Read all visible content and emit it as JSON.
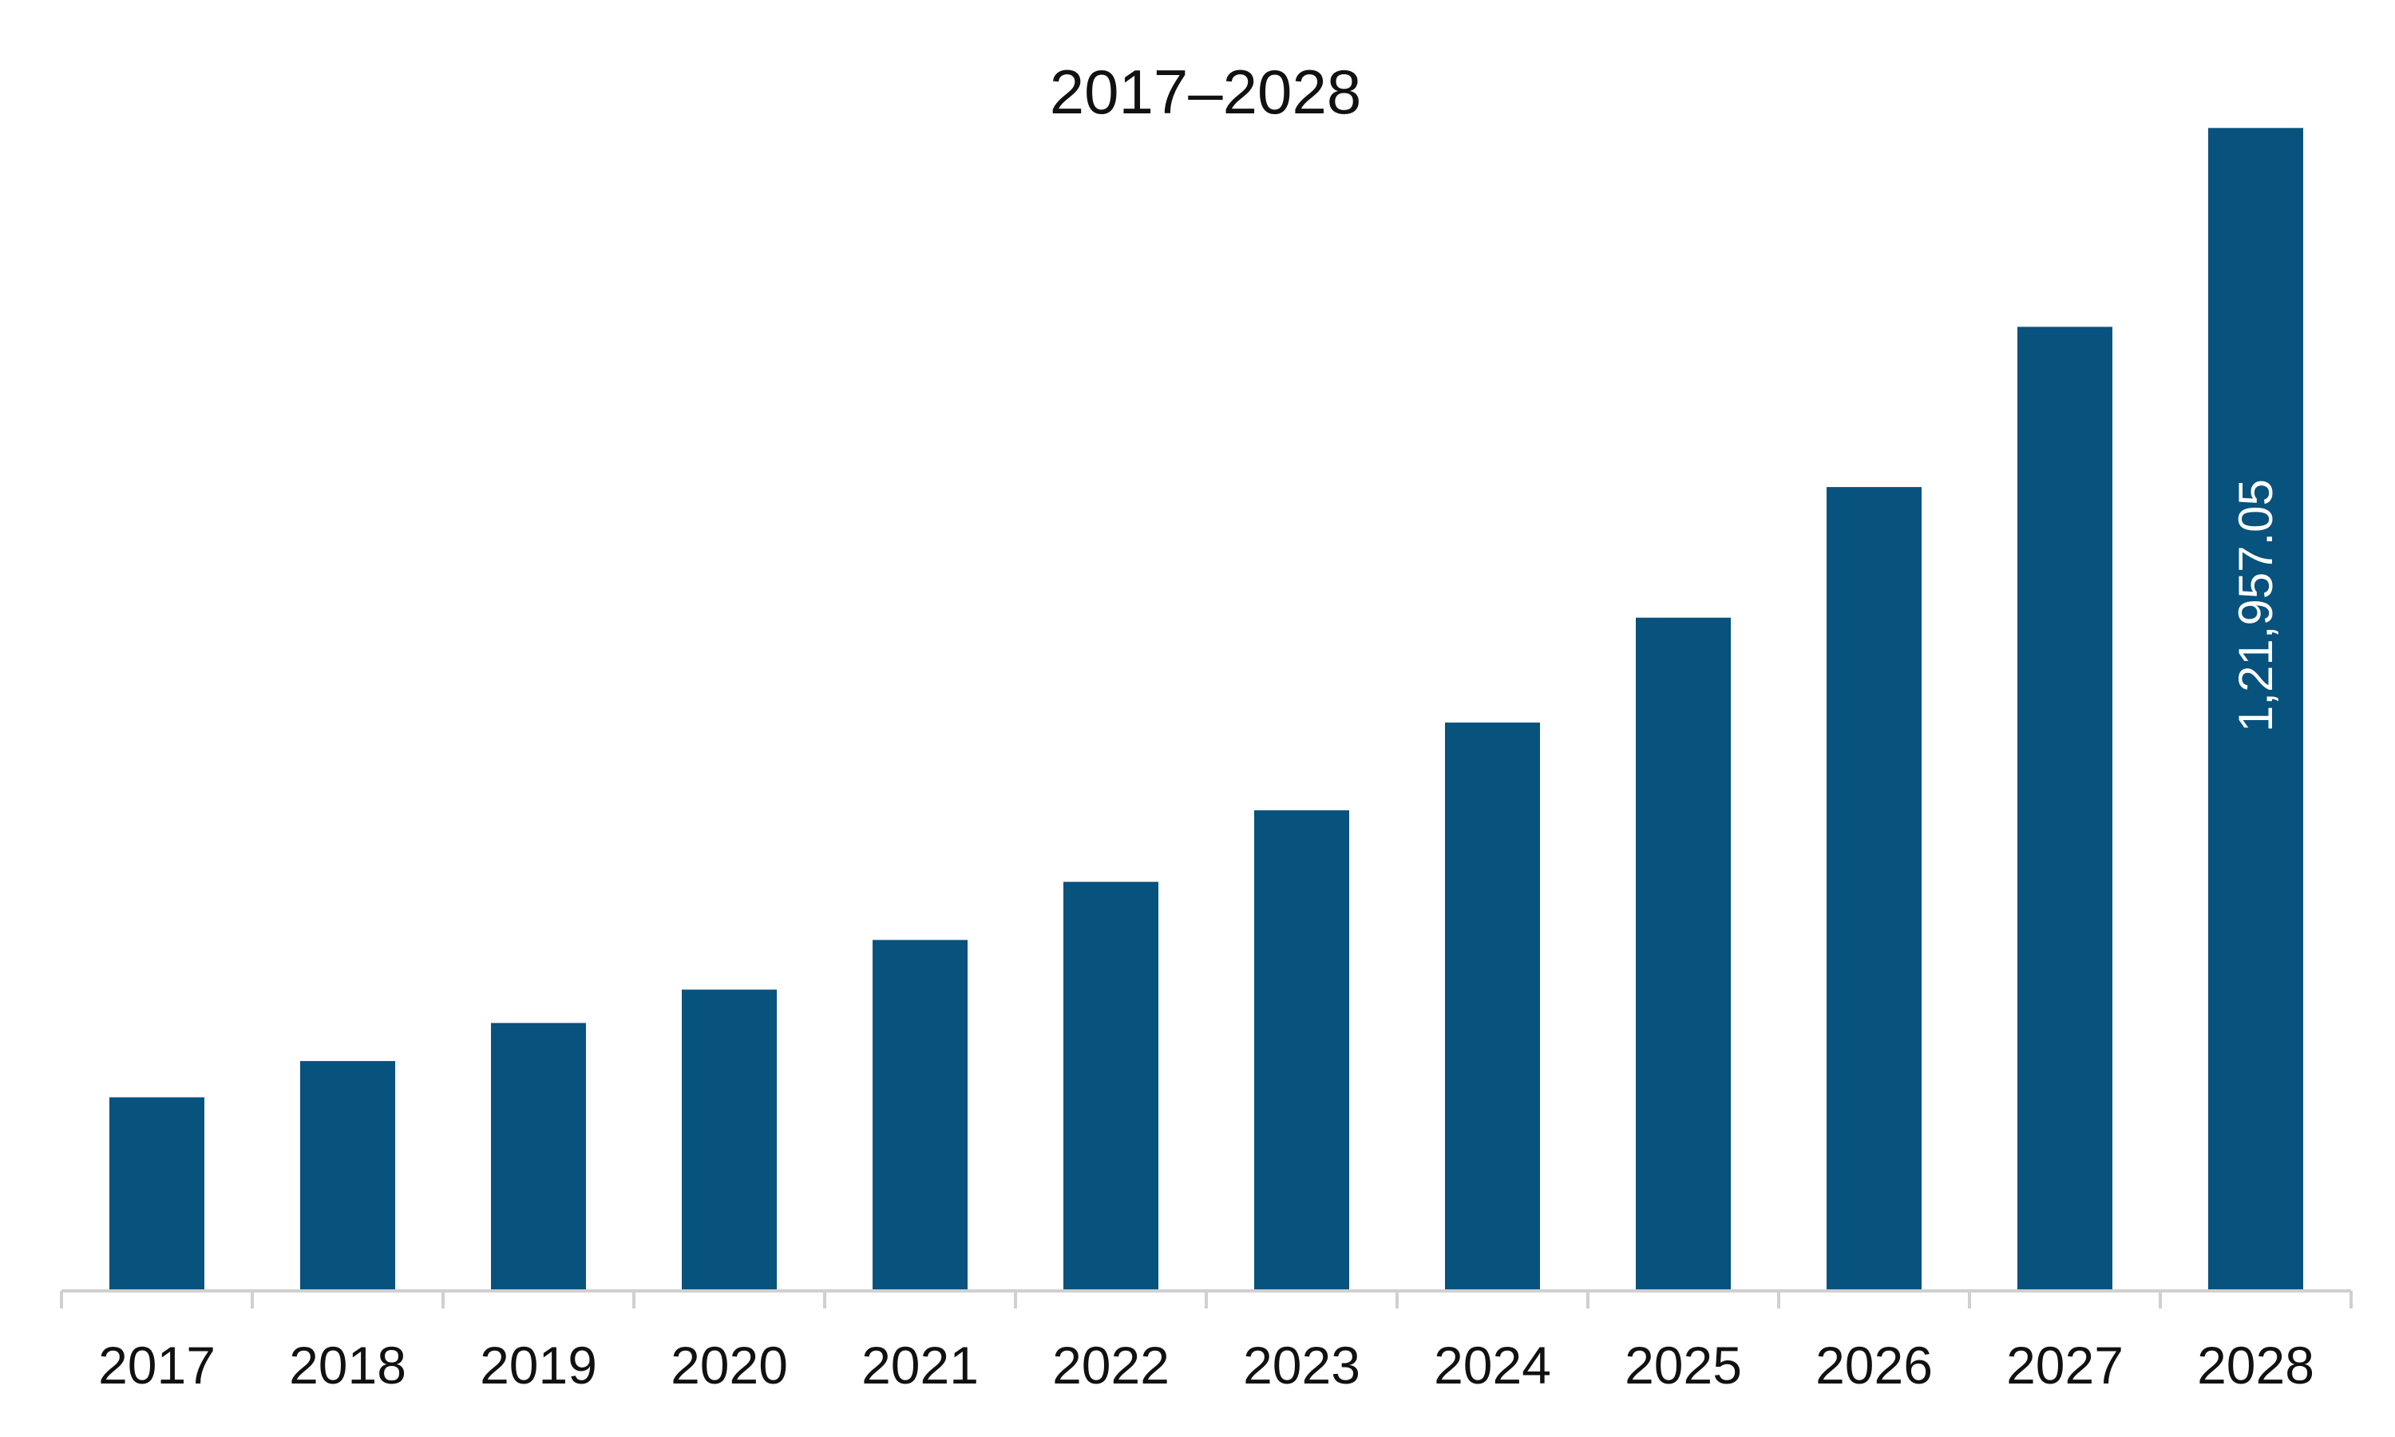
{
  "chart_data": {
    "type": "bar",
    "title": "2017–2028",
    "xlabel": "",
    "ylabel": "",
    "categories": [
      "2017",
      "2018",
      "2019",
      "2020",
      "2021",
      "2022",
      "2023",
      "2024",
      "2025",
      "2026",
      "2027",
      "2028"
    ],
    "series": [
      {
        "values": [
          20300,
          24100,
          28100,
          31600,
          36800,
          42900,
          50400,
          59600,
          70600,
          84300,
          101100,
          121957.05
        ]
      }
    ],
    "data_labels": [
      {
        "category": "2028",
        "text": "1,21,957.05"
      }
    ],
    "ylim": [
      0,
      126000
    ],
    "grid": false,
    "legend": "none",
    "colors": {
      "bar": "#08527E",
      "axis": "#D0D0D0",
      "data_label": "#FFFFFF"
    }
  }
}
